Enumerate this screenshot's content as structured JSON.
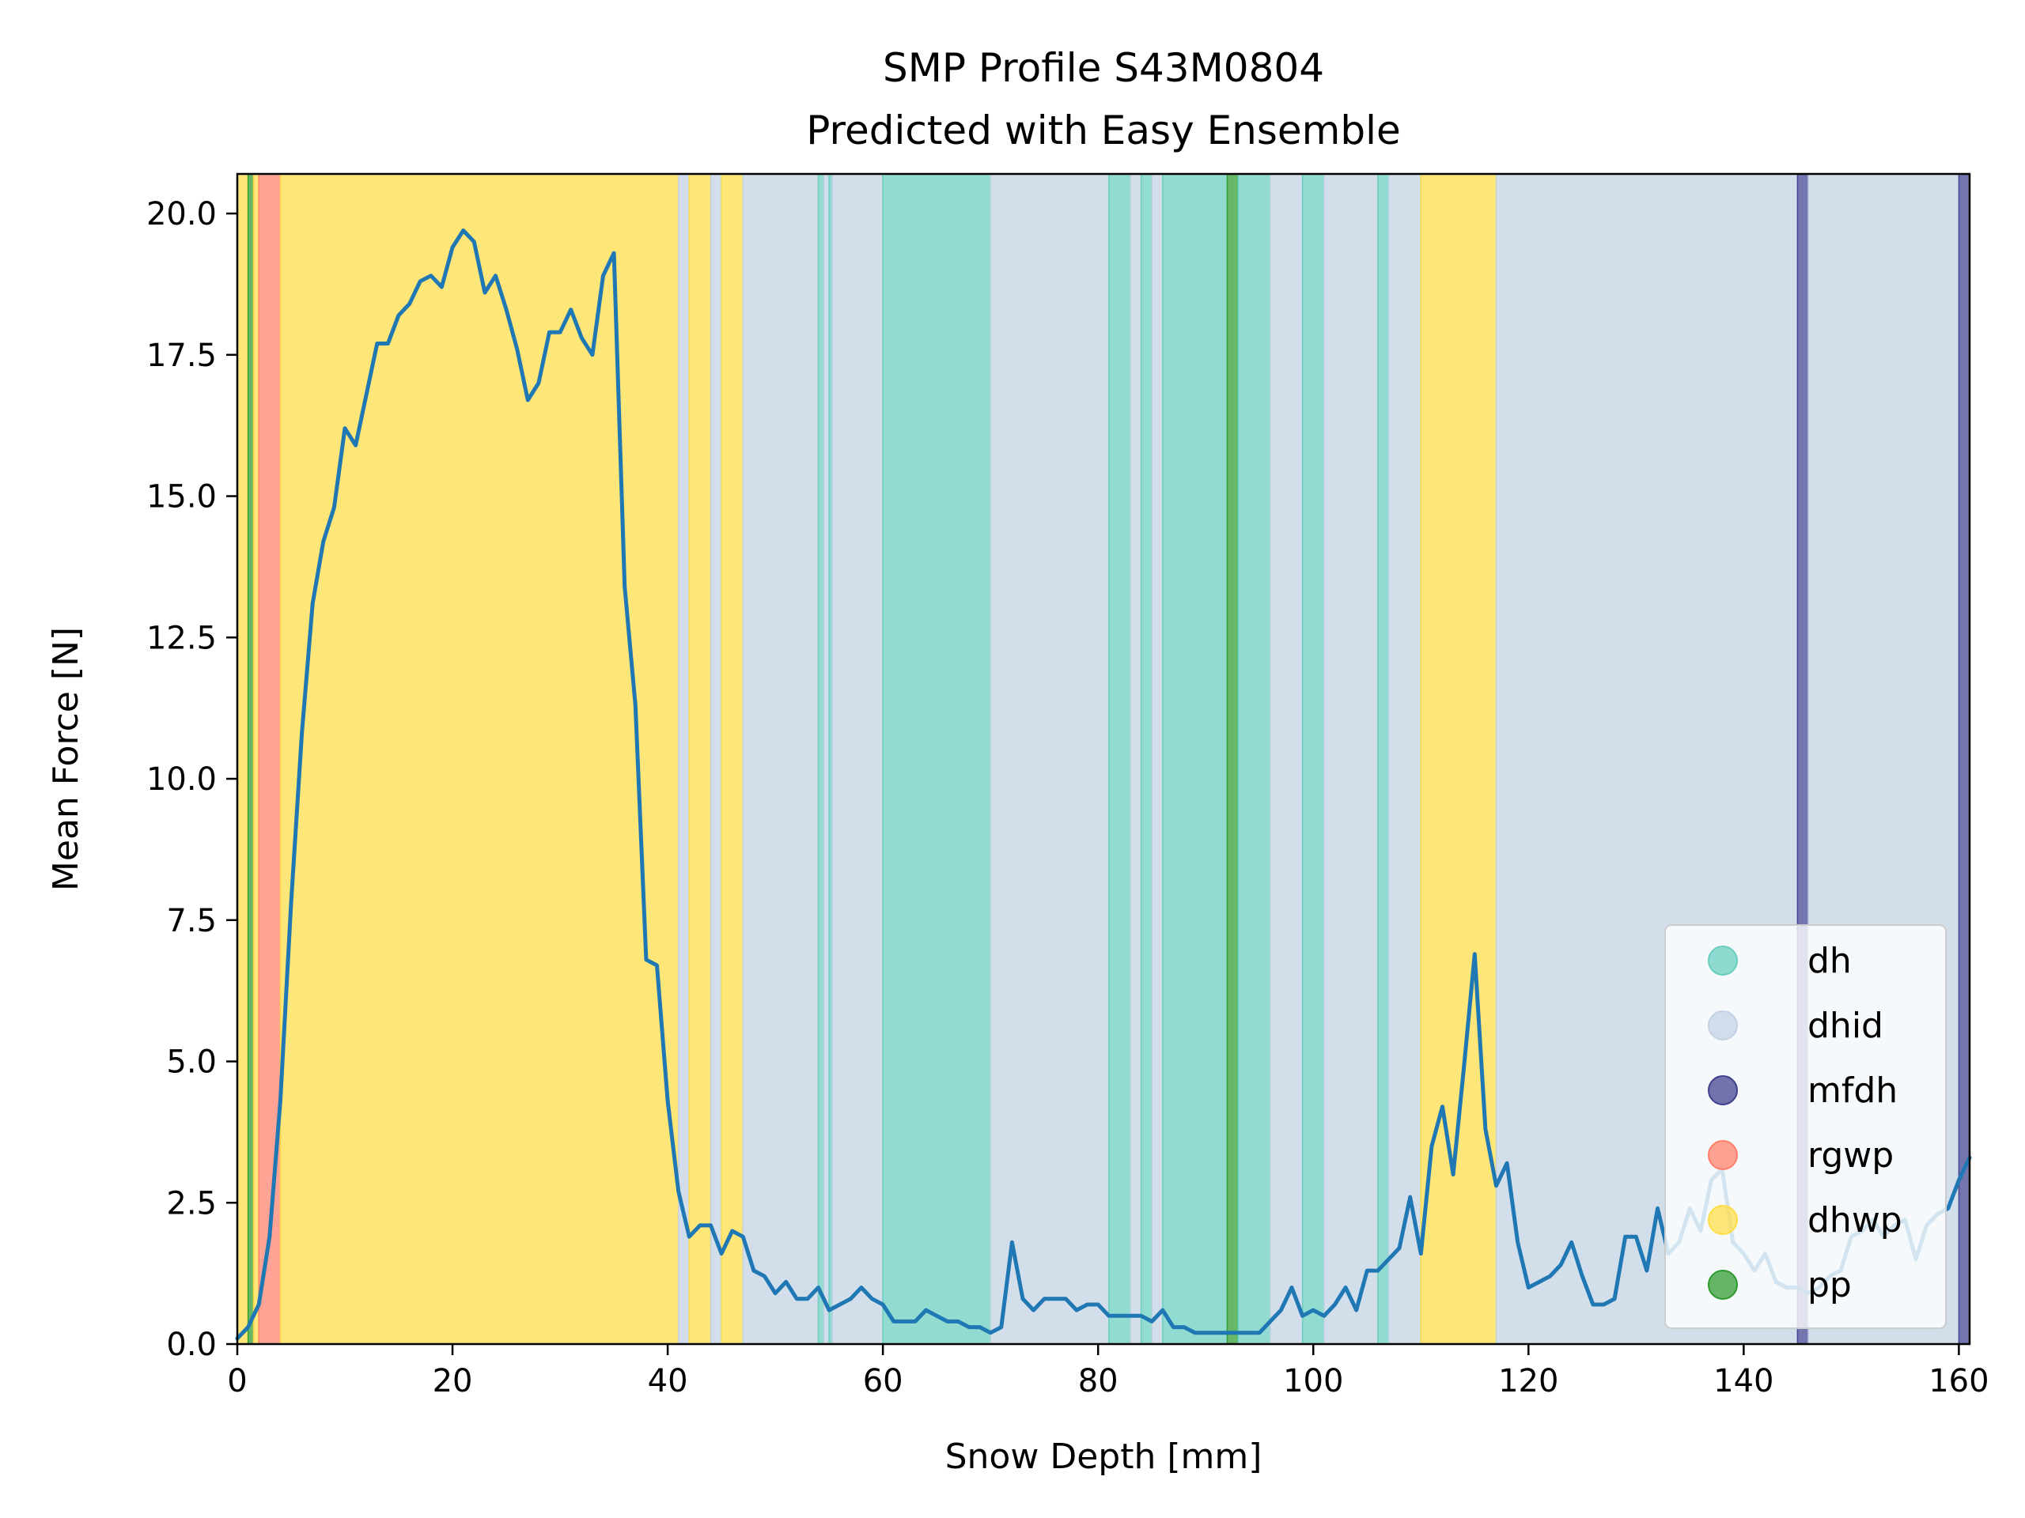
{
  "chart_data": {
    "type": "line",
    "title": "SMP Profile S43M0804",
    "subtitle": "Predicted with Easy Ensemble",
    "xlabel": "Snow Depth [mm]",
    "ylabel": "Mean Force [N]",
    "xlim": [
      0,
      161
    ],
    "ylim": [
      0,
      20.7
    ],
    "xticks": [
      0,
      20,
      40,
      60,
      80,
      100,
      120,
      140,
      160
    ],
    "yticks": [
      0.0,
      2.5,
      5.0,
      7.5,
      10.0,
      12.5,
      15.0,
      17.5,
      20.0
    ],
    "xtick_labels": [
      "0",
      "20",
      "40",
      "60",
      "80",
      "100",
      "120",
      "140",
      "160"
    ],
    "ytick_labels": [
      "0.0",
      "2.5",
      "5.0",
      "7.5",
      "10.0",
      "12.5",
      "15.0",
      "17.5",
      "20.0"
    ],
    "grid": false,
    "legend_position": "lower-right",
    "line_color": "#1f77b4",
    "classes": [
      {
        "name": "dh",
        "color": "#66cdbf"
      },
      {
        "name": "dhid",
        "color": "#c2d1e3"
      },
      {
        "name": "mfdh",
        "color": "#3f3f8f"
      },
      {
        "name": "rgwp",
        "color": "#ff7f6b"
      },
      {
        "name": "dhwp",
        "color": "#ffdd44"
      },
      {
        "name": "pp",
        "color": "#2e9a2e"
      }
    ],
    "segments": [
      {
        "start": 0.0,
        "end": 1.0,
        "class": "dhwp"
      },
      {
        "start": 1.0,
        "end": 1.5,
        "class": "pp"
      },
      {
        "start": 1.5,
        "end": 2.0,
        "class": "dhwp"
      },
      {
        "start": 2.0,
        "end": 4.0,
        "class": "rgwp"
      },
      {
        "start": 4.0,
        "end": 41.0,
        "class": "dhwp"
      },
      {
        "start": 41.0,
        "end": 42.0,
        "class": "dhid"
      },
      {
        "start": 42.0,
        "end": 44.0,
        "class": "dhwp"
      },
      {
        "start": 44.0,
        "end": 45.0,
        "class": "dhid"
      },
      {
        "start": 45.0,
        "end": 47.0,
        "class": "dhwp"
      },
      {
        "start": 47.0,
        "end": 54.0,
        "class": "dhid"
      },
      {
        "start": 54.0,
        "end": 54.5,
        "class": "dh"
      },
      {
        "start": 54.5,
        "end": 55.0,
        "class": "dhid"
      },
      {
        "start": 55.0,
        "end": 55.3,
        "class": "dh"
      },
      {
        "start": 55.3,
        "end": 60.0,
        "class": "dhid"
      },
      {
        "start": 60.0,
        "end": 70.0,
        "class": "dh"
      },
      {
        "start": 70.0,
        "end": 81.0,
        "class": "dhid"
      },
      {
        "start": 81.0,
        "end": 83.0,
        "class": "dh"
      },
      {
        "start": 83.0,
        "end": 84.0,
        "class": "dhid"
      },
      {
        "start": 84.0,
        "end": 85.0,
        "class": "dh"
      },
      {
        "start": 85.0,
        "end": 86.0,
        "class": "dhid"
      },
      {
        "start": 86.0,
        "end": 92.0,
        "class": "dh"
      },
      {
        "start": 92.0,
        "end": 93.0,
        "class": "pp"
      },
      {
        "start": 93.0,
        "end": 96.0,
        "class": "dh"
      },
      {
        "start": 96.0,
        "end": 99.0,
        "class": "dhid"
      },
      {
        "start": 99.0,
        "end": 101.0,
        "class": "dh"
      },
      {
        "start": 101.0,
        "end": 106.0,
        "class": "dhid"
      },
      {
        "start": 106.0,
        "end": 107.0,
        "class": "dh"
      },
      {
        "start": 107.0,
        "end": 110.0,
        "class": "dhid"
      },
      {
        "start": 110.0,
        "end": 117.0,
        "class": "dhwp"
      },
      {
        "start": 117.0,
        "end": 145.0,
        "class": "dhid"
      },
      {
        "start": 145.0,
        "end": 146.0,
        "class": "mfdh"
      },
      {
        "start": 146.0,
        "end": 160.0,
        "class": "dhid"
      },
      {
        "start": 160.0,
        "end": 161.0,
        "class": "mfdh"
      }
    ],
    "series": [
      {
        "x": [
          0,
          1,
          2,
          3,
          4,
          5,
          6,
          7,
          8,
          9,
          10,
          11,
          12,
          13,
          14,
          15,
          16,
          17,
          18,
          19,
          20,
          21,
          22,
          23,
          24,
          25,
          26,
          27,
          28,
          29,
          30,
          31,
          32,
          33,
          34,
          35,
          36,
          37,
          38,
          39,
          40,
          41,
          42,
          43,
          44,
          45,
          46,
          47,
          48,
          49,
          50,
          51,
          52,
          53,
          54,
          55,
          56,
          57,
          58,
          59,
          60,
          61,
          62,
          63,
          64,
          65,
          66,
          67,
          68,
          69,
          70,
          71,
          72,
          73,
          74,
          75,
          76,
          77,
          78,
          79,
          80,
          81,
          82,
          83,
          84,
          85,
          86,
          87,
          88,
          89,
          90,
          91,
          92,
          93,
          94,
          95,
          96,
          97,
          98,
          99,
          100,
          101,
          102,
          103,
          104,
          105,
          106,
          107,
          108,
          109,
          110,
          111,
          112,
          113,
          114,
          115,
          116,
          117,
          118,
          119,
          120,
          121,
          122,
          123,
          124,
          125,
          126,
          127,
          128,
          129,
          130,
          131,
          132,
          133,
          134,
          135,
          136,
          137,
          138,
          139,
          140,
          141,
          142,
          143,
          144,
          145,
          146,
          147,
          148,
          149,
          150,
          151,
          152,
          153,
          154,
          155,
          156,
          157,
          158,
          159,
          160,
          161
        ],
        "values": [
          0.1,
          0.3,
          0.7,
          1.9,
          4.3,
          7.8,
          10.8,
          13.1,
          14.2,
          14.8,
          16.2,
          15.9,
          16.8,
          17.7,
          17.7,
          18.2,
          18.4,
          18.8,
          18.9,
          18.7,
          19.4,
          19.7,
          19.5,
          18.6,
          18.9,
          18.3,
          17.6,
          16.7,
          17.0,
          17.9,
          17.9,
          18.3,
          17.8,
          17.5,
          18.9,
          19.3,
          13.4,
          11.3,
          6.8,
          6.7,
          4.3,
          2.7,
          1.9,
          2.1,
          2.1,
          1.6,
          2.0,
          1.9,
          1.3,
          1.2,
          0.9,
          1.1,
          0.8,
          0.8,
          1.0,
          0.6,
          0.7,
          0.8,
          1.0,
          0.8,
          0.7,
          0.4,
          0.4,
          0.4,
          0.6,
          0.5,
          0.4,
          0.4,
          0.3,
          0.3,
          0.2,
          0.3,
          1.8,
          0.8,
          0.6,
          0.8,
          0.8,
          0.8,
          0.6,
          0.7,
          0.7,
          0.5,
          0.5,
          0.5,
          0.5,
          0.4,
          0.6,
          0.3,
          0.3,
          0.2,
          0.2,
          0.2,
          0.2,
          0.2,
          0.2,
          0.2,
          0.4,
          0.6,
          1.0,
          0.5,
          0.6,
          0.5,
          0.7,
          1.0,
          0.6,
          1.3,
          1.3,
          1.5,
          1.7,
          2.6,
          1.6,
          3.5,
          4.2,
          3.0,
          4.9,
          6.9,
          3.8,
          2.8,
          3.2,
          1.8,
          1.0,
          1.1,
          1.2,
          1.4,
          1.8,
          1.2,
          0.7,
          0.7,
          0.8,
          1.9,
          1.9,
          1.3,
          2.4,
          1.6,
          1.8,
          2.4,
          2.0,
          2.9,
          3.1,
          1.8,
          1.6,
          1.3,
          1.6,
          1.1,
          1.0,
          1.0,
          0.9,
          1.0,
          1.2,
          1.3,
          1.9,
          2.0,
          2.2,
          1.9,
          2.1,
          2.2,
          1.5,
          2.1,
          2.3,
          2.4,
          2.9,
          3.3
        ]
      }
    ]
  }
}
